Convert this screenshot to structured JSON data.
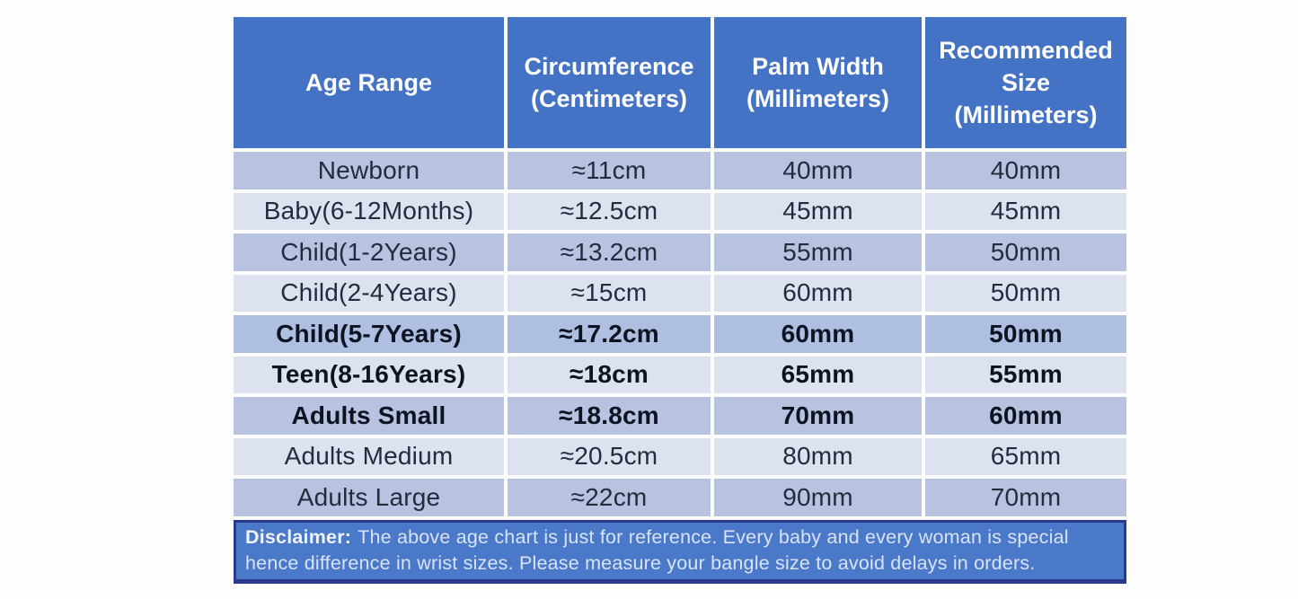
{
  "colors": {
    "header_bg": "#4472c4",
    "header_text": "#ffffff",
    "row_medium_bg": "#b8c3e1",
    "row_light_bg": "#dde2f0",
    "row_highlight_bg": "#aebfe1",
    "cell_text": "#252b3d",
    "bold_cell_text": "#0e1322",
    "disclaimer_bg": "#4b79c9",
    "disclaimer_border": "#2c3a8e",
    "disclaimer_text": "#d9e3f7",
    "page_bg": "#fdfdfd"
  },
  "chart_data": {
    "type": "table",
    "columns": [
      "Age Range",
      "Circumference (Centimeters)",
      "Palm Width (Millimeters)",
      "Recommended Size (Millimeters)"
    ],
    "rows": [
      [
        "Newborn",
        "≈11cm",
        "40mm",
        "40mm"
      ],
      [
        "Baby(6-12Months)",
        "≈12.5cm",
        "45mm",
        "45mm"
      ],
      [
        "Child(1-2Years)",
        "≈13.2cm",
        "55mm",
        "50mm"
      ],
      [
        "Child(2-4Years)",
        "≈15cm",
        "60mm",
        "50mm"
      ],
      [
        "Child(5-7Years)",
        "≈17.2cm",
        "60mm",
        "50mm"
      ],
      [
        "Teen(8-16Years)",
        "≈18cm",
        "65mm",
        "55mm"
      ],
      [
        "Adults Small",
        "≈18.8cm",
        "70mm",
        "60mm"
      ],
      [
        "Adults Medium",
        "≈20.5cm",
        "80mm",
        "65mm"
      ],
      [
        "Adults Large",
        "≈22cm",
        "90mm",
        "70mm"
      ]
    ],
    "emphasized_rows": [
      "Child(5-7Years)",
      "Teen(8-16Years)",
      "Adults Small"
    ]
  },
  "table": {
    "headers": [
      "Age Range",
      "Circumference (Centimeters)",
      "Palm Width (Millimeters)",
      "Recommended Size (Millimeters)"
    ],
    "rows": [
      {
        "age": "Newborn",
        "circumference": "≈11cm",
        "palm_width": "40mm",
        "recommended_size": "40mm",
        "bold": false
      },
      {
        "age": "Baby(6-12Months)",
        "circumference": "≈12.5cm",
        "palm_width": "45mm",
        "recommended_size": "45mm",
        "bold": false
      },
      {
        "age": "Child(1-2Years)",
        "circumference": "≈13.2cm",
        "palm_width": "55mm",
        "recommended_size": "50mm",
        "bold": false
      },
      {
        "age": "Child(2-4Years)",
        "circumference": "≈15cm",
        "palm_width": "60mm",
        "recommended_size": "50mm",
        "bold": false
      },
      {
        "age": "Child(5-7Years)",
        "circumference": "≈17.2cm",
        "palm_width": "60mm",
        "recommended_size": "50mm",
        "bold": true
      },
      {
        "age": "Teen(8-16Years)",
        "circumference": "≈18cm",
        "palm_width": "65mm",
        "recommended_size": "55mm",
        "bold": true
      },
      {
        "age": "Adults Small",
        "circumference": "≈18.8cm",
        "palm_width": "70mm",
        "recommended_size": "60mm",
        "bold": true
      },
      {
        "age": "Adults Medium",
        "circumference": "≈20.5cm",
        "palm_width": "80mm",
        "recommended_size": "65mm",
        "bold": false
      },
      {
        "age": "Adults Large",
        "circumference": "≈22cm",
        "palm_width": "90mm",
        "recommended_size": "70mm",
        "bold": false
      }
    ]
  },
  "disclaimer": {
    "label": "Disclaimer:",
    "text": "The above age chart is just for reference. Every baby and every woman is special hence difference in wrist sizes. Please measure your bangle size to avoid delays in orders."
  }
}
